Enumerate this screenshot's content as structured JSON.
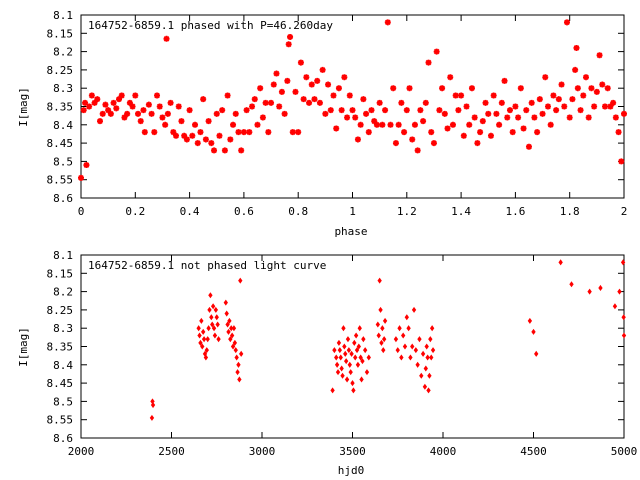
{
  "chart_data": [
    {
      "type": "scatter",
      "title": "164752-6859.1 phased with P=46.260day",
      "xlabel": "phase",
      "ylabel": "I[mag]",
      "xlim": [
        0,
        2
      ],
      "ylim": [
        8.6,
        8.1
      ],
      "y_inverted": true,
      "xticks": [
        0,
        0.2,
        0.4,
        0.6,
        0.8,
        1,
        1.2,
        1.4,
        1.6,
        1.8,
        2
      ],
      "xtick_labels": [
        "0",
        "0.2",
        "0.4",
        "0.6",
        "0.8",
        "1",
        "1.2",
        "1.4",
        "1.6",
        "1.8",
        "2"
      ],
      "yticks": [
        8.1,
        8.15,
        8.2,
        8.25,
        8.3,
        8.35,
        8.4,
        8.45,
        8.5,
        8.55,
        8.6
      ],
      "ytick_labels": [
        "8.1",
        "8.15",
        "8.2",
        "8.25",
        "8.3",
        "8.35",
        "8.4",
        "8.45",
        "8.5",
        "8.55",
        "8.6"
      ],
      "grid": false,
      "legend": "top-left",
      "color": "#ff0000",
      "points": [
        [
          0.0,
          8.545
        ],
        [
          0.01,
          8.36
        ],
        [
          0.015,
          8.34
        ],
        [
          0.02,
          8.51
        ],
        [
          0.03,
          8.35
        ],
        [
          0.04,
          8.32
        ],
        [
          0.05,
          8.34
        ],
        [
          0.06,
          8.33
        ],
        [
          0.07,
          8.39
        ],
        [
          0.08,
          8.37
        ],
        [
          0.09,
          8.345
        ],
        [
          0.1,
          8.36
        ],
        [
          0.11,
          8.37
        ],
        [
          0.12,
          8.34
        ],
        [
          0.13,
          8.355
        ],
        [
          0.14,
          8.33
        ],
        [
          0.15,
          8.32
        ],
        [
          0.16,
          8.38
        ],
        [
          0.17,
          8.37
        ],
        [
          0.18,
          8.34
        ],
        [
          0.19,
          8.35
        ],
        [
          0.2,
          8.32
        ],
        [
          0.21,
          8.37
        ],
        [
          0.22,
          8.39
        ],
        [
          0.23,
          8.36
        ],
        [
          0.235,
          8.42
        ],
        [
          0.25,
          8.345
        ],
        [
          0.26,
          8.37
        ],
        [
          0.27,
          8.42
        ],
        [
          0.28,
          8.32
        ],
        [
          0.29,
          8.35
        ],
        [
          0.3,
          8.38
        ],
        [
          0.31,
          8.4
        ],
        [
          0.315,
          8.165
        ],
        [
          0.32,
          8.37
        ],
        [
          0.33,
          8.34
        ],
        [
          0.34,
          8.42
        ],
        [
          0.35,
          8.43
        ],
        [
          0.36,
          8.35
        ],
        [
          0.37,
          8.39
        ],
        [
          0.38,
          8.43
        ],
        [
          0.39,
          8.44
        ],
        [
          0.4,
          8.36
        ],
        [
          0.41,
          8.43
        ],
        [
          0.42,
          8.4
        ],
        [
          0.43,
          8.45
        ],
        [
          0.44,
          8.42
        ],
        [
          0.45,
          8.33
        ],
        [
          0.46,
          8.44
        ],
        [
          0.47,
          8.39
        ],
        [
          0.48,
          8.45
        ],
        [
          0.49,
          8.47
        ],
        [
          0.5,
          8.37
        ],
        [
          0.51,
          8.43
        ],
        [
          0.52,
          8.36
        ],
        [
          0.53,
          8.47
        ],
        [
          0.54,
          8.32
        ],
        [
          0.55,
          8.44
        ],
        [
          0.56,
          8.4
        ],
        [
          0.57,
          8.37
        ],
        [
          0.58,
          8.42
        ],
        [
          0.59,
          8.47
        ],
        [
          0.6,
          8.42
        ],
        [
          0.61,
          8.36
        ],
        [
          0.62,
          8.42
        ],
        [
          0.63,
          8.35
        ],
        [
          0.64,
          8.33
        ],
        [
          0.65,
          8.4
        ],
        [
          0.66,
          8.3
        ],
        [
          0.67,
          8.38
        ],
        [
          0.68,
          8.34
        ],
        [
          0.69,
          8.42
        ],
        [
          0.7,
          8.34
        ],
        [
          0.71,
          8.29
        ],
        [
          0.72,
          8.26
        ],
        [
          0.73,
          8.35
        ],
        [
          0.74,
          8.31
        ],
        [
          0.75,
          8.37
        ],
        [
          0.76,
          8.28
        ],
        [
          0.765,
          8.18
        ],
        [
          0.77,
          8.16
        ],
        [
          0.78,
          8.42
        ],
        [
          0.79,
          8.31
        ],
        [
          0.8,
          8.42
        ],
        [
          0.81,
          8.23
        ],
        [
          0.82,
          8.33
        ],
        [
          0.83,
          8.27
        ],
        [
          0.84,
          8.34
        ],
        [
          0.85,
          8.29
        ],
        [
          0.86,
          8.33
        ],
        [
          0.87,
          8.28
        ],
        [
          0.88,
          8.34
        ],
        [
          0.89,
          8.25
        ],
        [
          0.9,
          8.37
        ],
        [
          0.91,
          8.29
        ],
        [
          0.92,
          8.36
        ],
        [
          0.93,
          8.32
        ],
        [
          0.94,
          8.41
        ],
        [
          0.95,
          8.3
        ],
        [
          0.96,
          8.36
        ],
        [
          0.97,
          8.27
        ],
        [
          0.98,
          8.38
        ],
        [
          0.99,
          8.32
        ],
        [
          1.0,
          8.36
        ],
        [
          1.01,
          8.38
        ],
        [
          1.02,
          8.44
        ],
        [
          1.03,
          8.4
        ],
        [
          1.04,
          8.33
        ],
        [
          1.05,
          8.37
        ],
        [
          1.06,
          8.42
        ],
        [
          1.07,
          8.36
        ],
        [
          1.08,
          8.39
        ],
        [
          1.09,
          8.4
        ],
        [
          1.1,
          8.34
        ],
        [
          1.11,
          8.4
        ],
        [
          1.12,
          8.36
        ],
        [
          1.13,
          8.12
        ],
        [
          1.14,
          8.4
        ],
        [
          1.15,
          8.3
        ],
        [
          1.16,
          8.45
        ],
        [
          1.17,
          8.4
        ],
        [
          1.18,
          8.34
        ],
        [
          1.19,
          8.42
        ],
        [
          1.2,
          8.36
        ],
        [
          1.21,
          8.3
        ],
        [
          1.22,
          8.44
        ],
        [
          1.23,
          8.4
        ],
        [
          1.24,
          8.47
        ],
        [
          1.25,
          8.36
        ],
        [
          1.26,
          8.39
        ],
        [
          1.27,
          8.34
        ],
        [
          1.28,
          8.23
        ],
        [
          1.29,
          8.42
        ],
        [
          1.3,
          8.45
        ],
        [
          1.31,
          8.2
        ],
        [
          1.32,
          8.36
        ],
        [
          1.33,
          8.3
        ],
        [
          1.34,
          8.37
        ],
        [
          1.35,
          8.41
        ],
        [
          1.36,
          8.27
        ],
        [
          1.37,
          8.4
        ],
        [
          1.38,
          8.32
        ],
        [
          1.39,
          8.36
        ],
        [
          1.4,
          8.32
        ],
        [
          1.41,
          8.43
        ],
        [
          1.42,
          8.35
        ],
        [
          1.43,
          8.4
        ],
        [
          1.44,
          8.3
        ],
        [
          1.45,
          8.38
        ],
        [
          1.46,
          8.45
        ],
        [
          1.47,
          8.42
        ],
        [
          1.48,
          8.39
        ],
        [
          1.49,
          8.34
        ],
        [
          1.5,
          8.37
        ],
        [
          1.51,
          8.43
        ],
        [
          1.52,
          8.32
        ],
        [
          1.53,
          8.37
        ],
        [
          1.54,
          8.4
        ],
        [
          1.55,
          8.34
        ],
        [
          1.56,
          8.28
        ],
        [
          1.57,
          8.38
        ],
        [
          1.58,
          8.36
        ],
        [
          1.59,
          8.42
        ],
        [
          1.6,
          8.35
        ],
        [
          1.61,
          8.38
        ],
        [
          1.62,
          8.3
        ],
        [
          1.63,
          8.41
        ],
        [
          1.64,
          8.36
        ],
        [
          1.65,
          8.46
        ],
        [
          1.66,
          8.34
        ],
        [
          1.67,
          8.38
        ],
        [
          1.68,
          8.42
        ],
        [
          1.69,
          8.33
        ],
        [
          1.7,
          8.37
        ],
        [
          1.71,
          8.27
        ],
        [
          1.72,
          8.35
        ],
        [
          1.73,
          8.4
        ],
        [
          1.74,
          8.32
        ],
        [
          1.75,
          8.36
        ],
        [
          1.76,
          8.33
        ],
        [
          1.77,
          8.29
        ],
        [
          1.78,
          8.35
        ],
        [
          1.79,
          8.12
        ],
        [
          1.8,
          8.38
        ],
        [
          1.81,
          8.33
        ],
        [
          1.82,
          8.25
        ],
        [
          1.825,
          8.19
        ],
        [
          1.83,
          8.3
        ],
        [
          1.84,
          8.36
        ],
        [
          1.85,
          8.32
        ],
        [
          1.86,
          8.27
        ],
        [
          1.87,
          8.38
        ],
        [
          1.88,
          8.3
        ],
        [
          1.89,
          8.35
        ],
        [
          1.9,
          8.31
        ],
        [
          1.91,
          8.21
        ],
        [
          1.92,
          8.29
        ],
        [
          1.93,
          8.35
        ],
        [
          1.94,
          8.3
        ],
        [
          1.95,
          8.35
        ],
        [
          1.96,
          8.34
        ],
        [
          1.97,
          8.38
        ],
        [
          1.98,
          8.42
        ],
        [
          1.99,
          8.5
        ],
        [
          2.0,
          8.37
        ]
      ]
    },
    {
      "type": "scatter",
      "title": "164752-6859.1 not phased light curve",
      "xlabel": "hjd0",
      "ylabel": "I[mag]",
      "xlim": [
        2000,
        5000
      ],
      "ylim": [
        8.6,
        8.1
      ],
      "y_inverted": true,
      "xticks": [
        2000,
        2500,
        3000,
        3500,
        4000,
        4500,
        5000
      ],
      "xtick_labels": [
        "2000",
        "2500",
        "3000",
        "3500",
        "4000",
        "4500",
        "5000"
      ],
      "yticks": [
        8.1,
        8.15,
        8.2,
        8.25,
        8.3,
        8.35,
        8.4,
        8.45,
        8.5,
        8.55,
        8.6
      ],
      "ytick_labels": [
        "8.1",
        "8.15",
        "8.2",
        "8.25",
        "8.3",
        "8.35",
        "8.4",
        "8.45",
        "8.5",
        "8.55",
        "8.6"
      ],
      "grid": false,
      "legend": "top-left",
      "color": "#ff0000",
      "points": [
        [
          2395,
          8.5
        ],
        [
          2398,
          8.51
        ],
        [
          2392,
          8.545
        ],
        [
          2650,
          8.3
        ],
        [
          2655,
          8.32
        ],
        [
          2660,
          8.34
        ],
        [
          2665,
          8.28
        ],
        [
          2670,
          8.35
        ],
        [
          2675,
          8.31
        ],
        [
          2680,
          8.33
        ],
        [
          2685,
          8.37
        ],
        [
          2690,
          8.38
        ],
        [
          2695,
          8.36
        ],
        [
          2700,
          8.33
        ],
        [
          2705,
          8.3
        ],
        [
          2710,
          8.25
        ],
        [
          2715,
          8.21
        ],
        [
          2720,
          8.27
        ],
        [
          2725,
          8.29
        ],
        [
          2730,
          8.24
        ],
        [
          2735,
          8.3
        ],
        [
          2740,
          8.32
        ],
        [
          2745,
          8.25
        ],
        [
          2750,
          8.27
        ],
        [
          2755,
          8.29
        ],
        [
          2760,
          8.33
        ],
        [
          2800,
          8.23
        ],
        [
          2805,
          8.26
        ],
        [
          2810,
          8.29
        ],
        [
          2815,
          8.31
        ],
        [
          2820,
          8.28
        ],
        [
          2825,
          8.33
        ],
        [
          2830,
          8.3
        ],
        [
          2835,
          8.32
        ],
        [
          2840,
          8.35
        ],
        [
          2845,
          8.3
        ],
        [
          2850,
          8.34
        ],
        [
          2855,
          8.36
        ],
        [
          2860,
          8.38
        ],
        [
          2865,
          8.42
        ],
        [
          2870,
          8.4
        ],
        [
          2875,
          8.44
        ],
        [
          2880,
          8.17
        ],
        [
          2885,
          8.37
        ],
        [
          3390,
          8.47
        ],
        [
          3400,
          8.36
        ],
        [
          3410,
          8.38
        ],
        [
          3415,
          8.4
        ],
        [
          3420,
          8.42
        ],
        [
          3425,
          8.34
        ],
        [
          3430,
          8.36
        ],
        [
          3435,
          8.38
        ],
        [
          3440,
          8.41
        ],
        [
          3445,
          8.43
        ],
        [
          3450,
          8.3
        ],
        [
          3455,
          8.35
        ],
        [
          3460,
          8.37
        ],
        [
          3465,
          8.39
        ],
        [
          3470,
          8.44
        ],
        [
          3475,
          8.33
        ],
        [
          3480,
          8.36
        ],
        [
          3485,
          8.4
        ],
        [
          3490,
          8.42
        ],
        [
          3495,
          8.37
        ],
        [
          3500,
          8.45
        ],
        [
          3505,
          8.47
        ],
        [
          3510,
          8.34
        ],
        [
          3515,
          8.38
        ],
        [
          3520,
          8.32
        ],
        [
          3525,
          8.36
        ],
        [
          3530,
          8.4
        ],
        [
          3535,
          8.35
        ],
        [
          3540,
          8.3
        ],
        [
          3545,
          8.38
        ],
        [
          3550,
          8.44
        ],
        [
          3555,
          8.39
        ],
        [
          3560,
          8.33
        ],
        [
          3570,
          8.36
        ],
        [
          3580,
          8.42
        ],
        [
          3590,
          8.38
        ],
        [
          3640,
          8.29
        ],
        [
          3645,
          8.32
        ],
        [
          3650,
          8.17
        ],
        [
          3655,
          8.25
        ],
        [
          3660,
          8.34
        ],
        [
          3665,
          8.3
        ],
        [
          3670,
          8.36
        ],
        [
          3675,
          8.33
        ],
        [
          3680,
          8.28
        ],
        [
          3740,
          8.33
        ],
        [
          3750,
          8.36
        ],
        [
          3760,
          8.3
        ],
        [
          3770,
          8.38
        ],
        [
          3780,
          8.32
        ],
        [
          3790,
          8.35
        ],
        [
          3800,
          8.27
        ],
        [
          3810,
          8.3
        ],
        [
          3820,
          8.38
        ],
        [
          3830,
          8.35
        ],
        [
          3840,
          8.25
        ],
        [
          3850,
          8.36
        ],
        [
          3860,
          8.4
        ],
        [
          3870,
          8.33
        ],
        [
          3880,
          8.43
        ],
        [
          3890,
          8.37
        ],
        [
          3900,
          8.46
        ],
        [
          3905,
          8.41
        ],
        [
          3910,
          8.35
        ],
        [
          3915,
          8.38
        ],
        [
          3920,
          8.47
        ],
        [
          3925,
          8.43
        ],
        [
          3930,
          8.33
        ],
        [
          3935,
          8.38
        ],
        [
          3940,
          8.3
        ],
        [
          3945,
          8.36
        ],
        [
          4480,
          8.28
        ],
        [
          4500,
          8.31
        ],
        [
          4515,
          8.37
        ],
        [
          4650,
          8.12
        ],
        [
          4710,
          8.18
        ],
        [
          4810,
          8.2
        ],
        [
          4870,
          8.19
        ],
        [
          4950,
          8.24
        ],
        [
          4975,
          8.2
        ],
        [
          4995,
          8.12
        ],
        [
          4998,
          8.27
        ],
        [
          5000,
          8.32
        ]
      ]
    }
  ]
}
